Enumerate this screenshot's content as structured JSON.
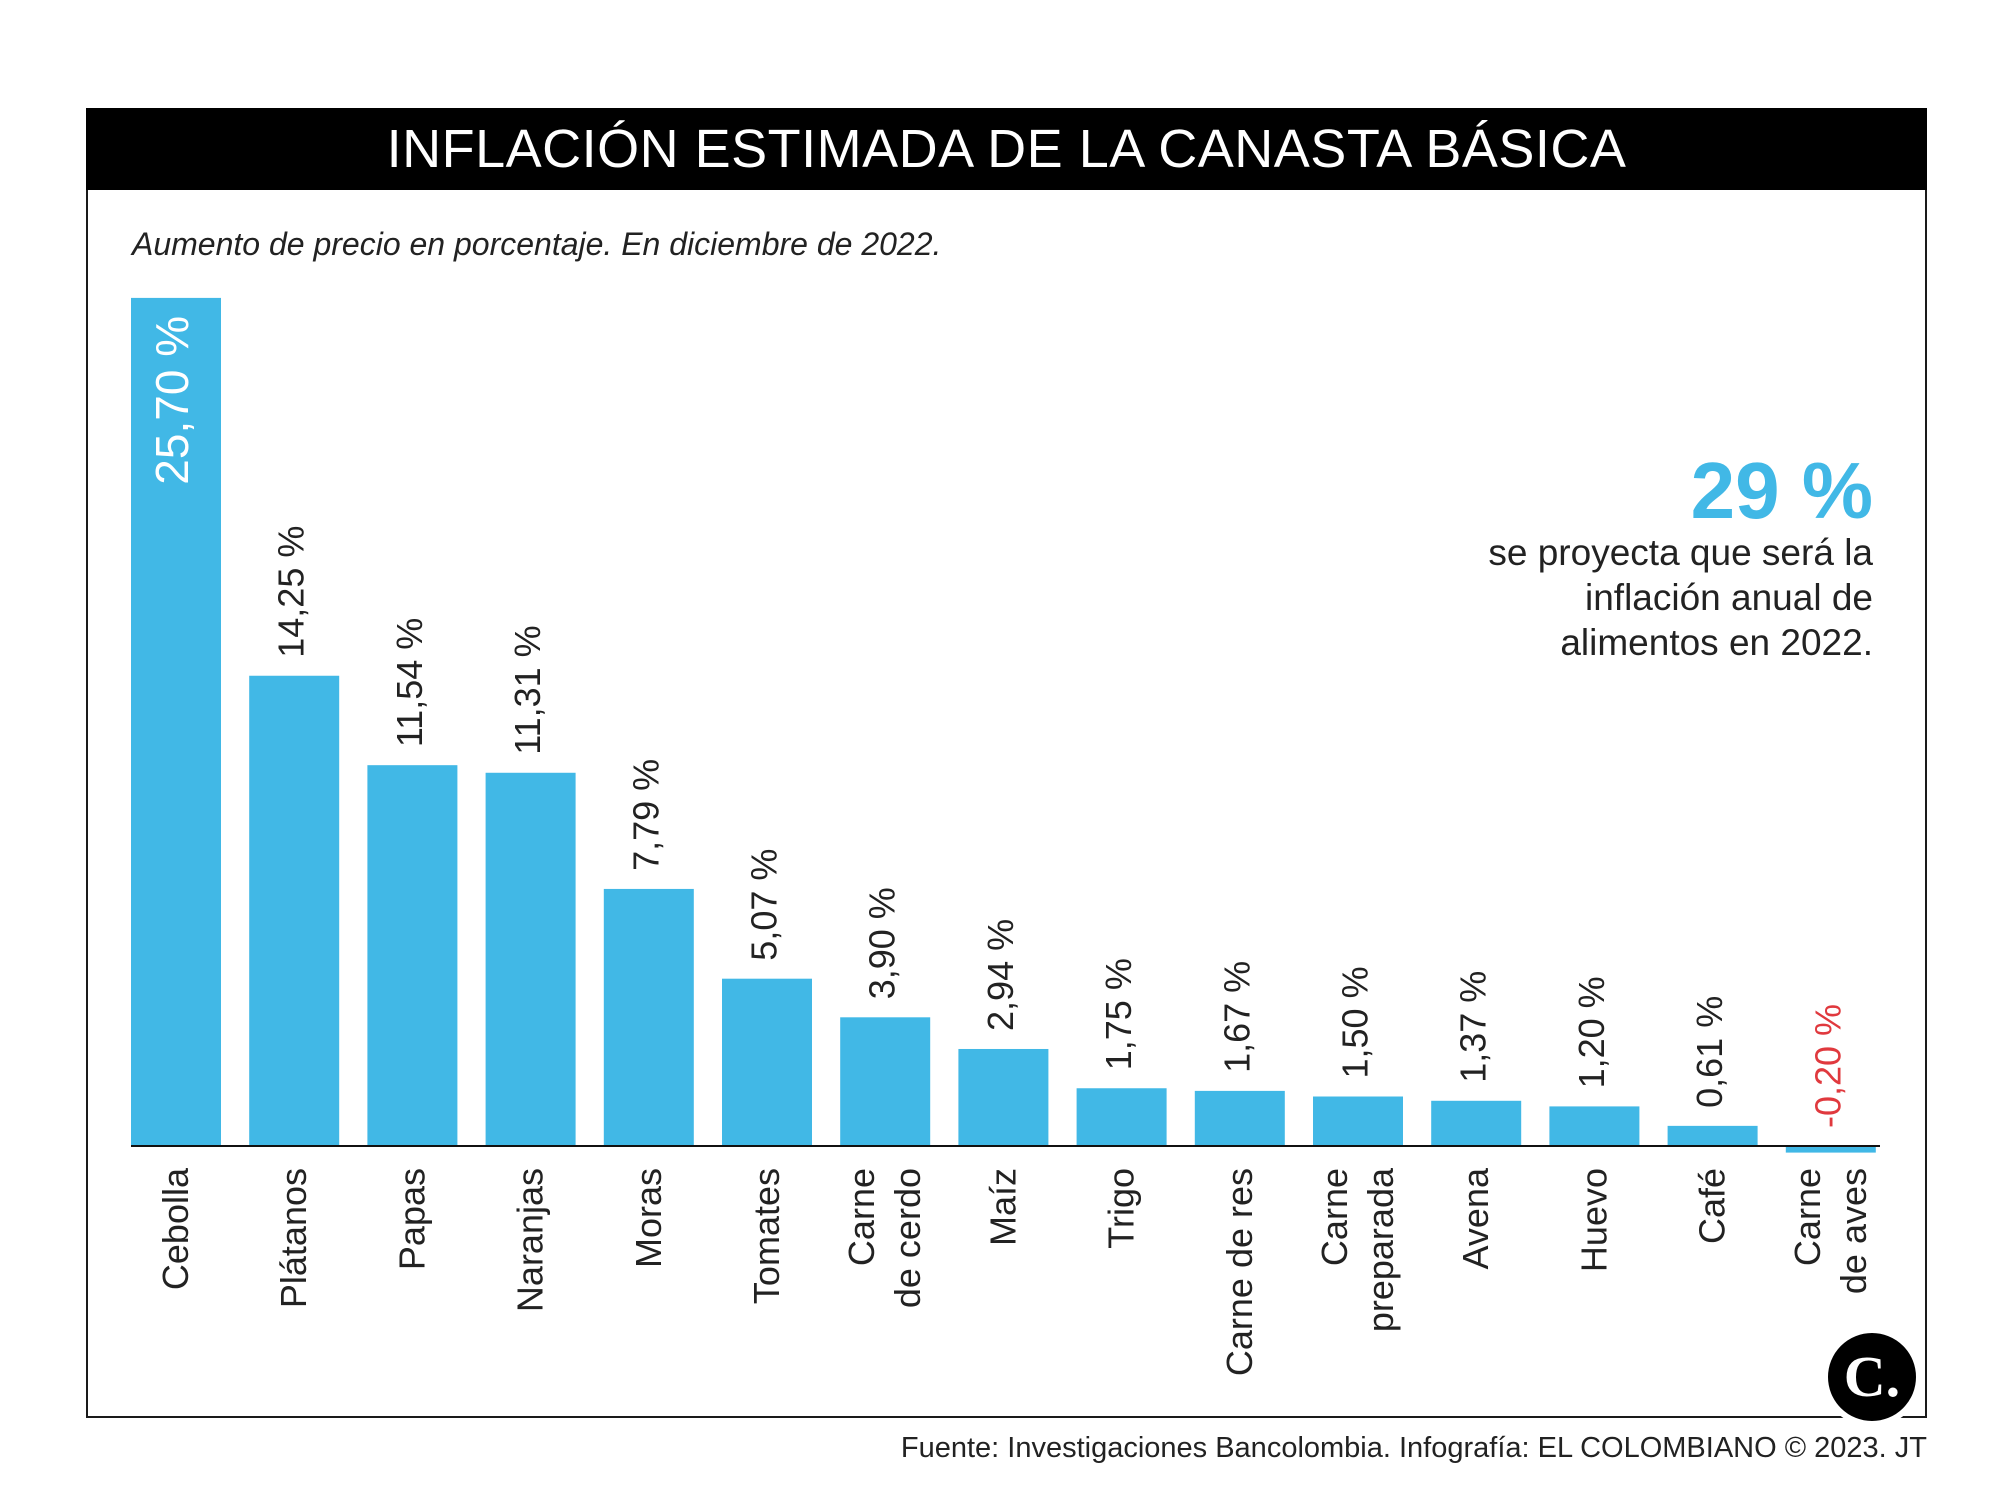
{
  "header": {
    "title": "INFLACIÓN ESTIMADA DE LA CANASTA BÁSICA"
  },
  "subtitle": "Aumento de precio en porcentaje. En diciembre de 2022.",
  "callout": {
    "value": "29 %",
    "text": "se proyecta que será la inflación anual de alimentos en 2022."
  },
  "footer": {
    "source": "Fuente: Investigaciones Bancolombia. Infografía: EL COLOMBIANO © 2023. JT"
  },
  "logo": {
    "icon": "el-colombiano-logo",
    "letter": "C."
  },
  "colors": {
    "bar": "#41b8e6",
    "negative_label": "#e0393e",
    "title_bg": "#000000"
  },
  "chart_data": {
    "type": "bar",
    "categories": [
      "Cebolla",
      "Plátanos",
      "Papas",
      "Naranjas",
      "Moras",
      "Tomates",
      "Carne de cerdo",
      "Maíz",
      "Trigo",
      "Carne de res",
      "Carne preparada",
      "Avena",
      "Huevo",
      "Café",
      "Carne de aves"
    ],
    "category_lines": [
      [
        "Cebolla"
      ],
      [
        "Plátanos"
      ],
      [
        "Papas"
      ],
      [
        "Naranjas"
      ],
      [
        "Moras"
      ],
      [
        "Tomates"
      ],
      [
        "Carne",
        "de cerdo"
      ],
      [
        "Maíz"
      ],
      [
        "Trigo"
      ],
      [
        "Carne de res"
      ],
      [
        "Carne",
        "preparada"
      ],
      [
        "Avena"
      ],
      [
        "Huevo"
      ],
      [
        "Café"
      ],
      [
        "Carne",
        "de aves"
      ]
    ],
    "values": [
      25.7,
      14.25,
      11.54,
      11.31,
      7.79,
      5.07,
      3.9,
      2.94,
      1.75,
      1.67,
      1.5,
      1.37,
      1.2,
      0.61,
      -0.2
    ],
    "labels": [
      "25,70 %",
      "14,25 %",
      "11,54 %",
      "11,31 %",
      "7,79 %",
      "5,07 %",
      "3,90 %",
      "2,94 %",
      "1,75 %",
      "1,67 %",
      "1,50 %",
      "1,37 %",
      "1,20 %",
      "0,61 %",
      "-0,20 %"
    ],
    "ylim": [
      -0.2,
      25.7
    ],
    "grid": false,
    "legend": "none"
  }
}
